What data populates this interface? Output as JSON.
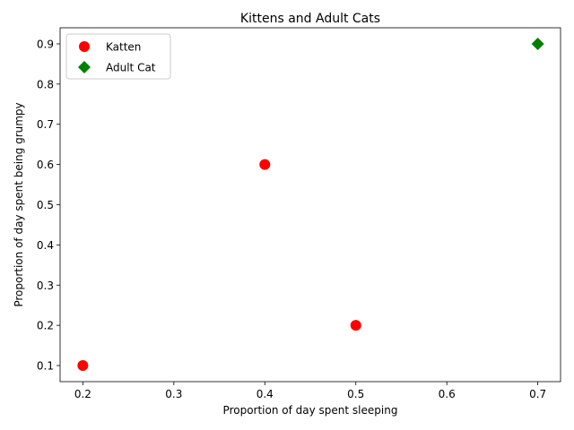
{
  "chart_data": {
    "type": "scatter",
    "title": "Kittens and Adult Cats",
    "xlabel": "Proportion of day spent sleeping",
    "ylabel": "Proportion of day spent being grumpy",
    "xlim": [
      0.175,
      0.725
    ],
    "ylim": [
      0.06,
      0.94
    ],
    "xticks": [
      0.2,
      0.3,
      0.4,
      0.5,
      0.6,
      0.7
    ],
    "yticks": [
      0.1,
      0.2,
      0.3,
      0.4,
      0.5,
      0.6,
      0.7,
      0.8,
      0.9
    ],
    "grid": false,
    "legend_position": "top-left",
    "series": [
      {
        "name": "Katten",
        "marker": "circle",
        "color": "#ff0000",
        "points": [
          {
            "x": 0.2,
            "y": 0.1
          },
          {
            "x": 0.4,
            "y": 0.6
          },
          {
            "x": 0.5,
            "y": 0.2
          }
        ]
      },
      {
        "name": "Adult Cat",
        "marker": "diamond",
        "color": "#008000",
        "points": [
          {
            "x": 0.7,
            "y": 0.9
          }
        ]
      }
    ]
  }
}
